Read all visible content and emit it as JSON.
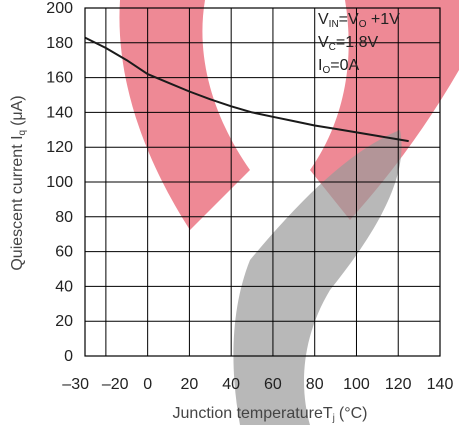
{
  "chart_data": {
    "type": "line",
    "title": "",
    "xlabel": "Junction temperature",
    "xlabel_symbol": "T",
    "xlabel_symbol_sub": "j",
    "xlabel_unit": "(°C)",
    "ylabel": "Quiescent current I",
    "ylabel_symbol_sub": "q",
    "ylabel_unit": "(μA)",
    "xlim": [
      -30,
      140
    ],
    "ylim": [
      0,
      200
    ],
    "x_ticks": [
      -30,
      -20,
      0,
      20,
      40,
      60,
      80,
      100,
      120,
      140
    ],
    "x_tick_labels": [
      "–30",
      "–20",
      "0",
      "20",
      "40",
      "60",
      "80",
      "100",
      "120",
      "140"
    ],
    "y_ticks": [
      0,
      20,
      40,
      60,
      80,
      100,
      120,
      140,
      160,
      180,
      200
    ],
    "y_tick_labels": [
      "0",
      "20",
      "40",
      "60",
      "80",
      "100",
      "120",
      "140",
      "160",
      "180",
      "200"
    ],
    "grid": true,
    "legend": "none",
    "series": [
      {
        "x": [
          -30,
          -20,
          -10,
          0,
          10,
          20,
          30,
          40,
          50,
          60,
          70,
          80,
          90,
          100,
          110,
          120,
          125
        ],
        "y": [
          183,
          177,
          170,
          162,
          157,
          152,
          147.5,
          143.5,
          140,
          137.5,
          135,
          132.5,
          130.5,
          128.5,
          126.5,
          124.5,
          123.5
        ]
      }
    ],
    "annotations": [
      {
        "parts": [
          {
            "t": "V"
          },
          {
            "t": "IN",
            "sub": true
          },
          {
            "t": "=V"
          },
          {
            "t": "O",
            "sub": true
          },
          {
            "t": " +1V"
          }
        ]
      },
      {
        "parts": [
          {
            "t": "V"
          },
          {
            "t": "C",
            "sub": true
          },
          {
            "t": "=1.8V"
          }
        ]
      },
      {
        "parts": [
          {
            "t": "I"
          },
          {
            "t": "O",
            "sub": true
          },
          {
            "t": "=0A"
          }
        ]
      }
    ],
    "colors": {
      "line": "#1a1a1a",
      "grid": "#000000",
      "text": "#222222"
    }
  },
  "watermark": {
    "colors": [
      "#e0283e",
      "#9a9a9a"
    ]
  }
}
